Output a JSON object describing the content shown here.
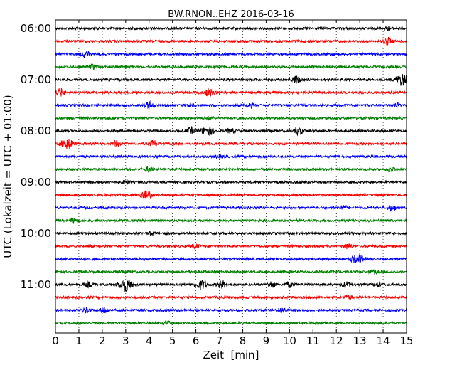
{
  "chart_data": {
    "type": "line",
    "title": "BW.RNON..EHZ 2016-03-16",
    "xlabel": "Zeit  [min]",
    "ylabel": "UTC (Lokalzeit = UTC + 01:00)",
    "xlim": [
      0,
      15
    ],
    "x_ticks": [
      "0",
      "1",
      "2",
      "3",
      "4",
      "5",
      "6",
      "7",
      "8",
      "9",
      "10",
      "11",
      "12",
      "13",
      "14",
      "15"
    ],
    "y_ticks": [
      "06:00",
      "07:00",
      "08:00",
      "09:00",
      "10:00",
      "11:00"
    ],
    "grid": "vertical-dotted",
    "trace_colors": [
      "#000000",
      "#ff0000",
      "#0000ff",
      "#008000"
    ],
    "traces": [
      {
        "start": "06:00",
        "events": [
          [
            14.2,
            2
          ]
        ]
      },
      {
        "start": "06:15",
        "events": [
          [
            14.2,
            5
          ]
        ]
      },
      {
        "start": "06:30",
        "events": [
          [
            1.3,
            4
          ]
        ]
      },
      {
        "start": "06:45",
        "events": [
          [
            1.6,
            3
          ]
        ]
      },
      {
        "start": "07:00",
        "events": [
          [
            10.3,
            5
          ],
          [
            14.8,
            8
          ]
        ]
      },
      {
        "start": "07:15",
        "events": [
          [
            0.2,
            5
          ],
          [
            6.5,
            3
          ],
          [
            6.6,
            3
          ]
        ]
      },
      {
        "start": "07:30",
        "events": [
          [
            4.0,
            5
          ],
          [
            5.8,
            3
          ],
          [
            8.3,
            3
          ],
          [
            14.6,
            3
          ]
        ]
      },
      {
        "start": "07:45",
        "events": [
          [
            6.6,
            2
          ]
        ]
      },
      {
        "start": "08:00",
        "events": [
          [
            5.8,
            4
          ],
          [
            6.5,
            6
          ],
          [
            7.5,
            3
          ],
          [
            10.4,
            5
          ]
        ]
      },
      {
        "start": "08:15",
        "events": [
          [
            0.5,
            7
          ],
          [
            2.6,
            4
          ],
          [
            4.2,
            4
          ]
        ]
      },
      {
        "start": "08:30",
        "events": [
          [
            7.0,
            2
          ]
        ]
      },
      {
        "start": "08:45",
        "events": [
          [
            4.0,
            3
          ],
          [
            14.3,
            3
          ]
        ]
      },
      {
        "start": "09:00",
        "events": [
          [
            3.0,
            2
          ]
        ]
      },
      {
        "start": "09:15",
        "events": [
          [
            3.8,
            4
          ],
          [
            4.0,
            3
          ]
        ]
      },
      {
        "start": "09:30",
        "events": [
          [
            12.3,
            3
          ],
          [
            14.4,
            4
          ]
        ]
      },
      {
        "start": "09:45",
        "events": [
          [
            0.8,
            3
          ]
        ]
      },
      {
        "start": "10:00",
        "events": [
          [
            4.1,
            2
          ]
        ]
      },
      {
        "start": "10:15",
        "events": [
          [
            6.0,
            3
          ],
          [
            12.5,
            3
          ]
        ]
      },
      {
        "start": "10:30",
        "events": [
          [
            12.9,
            6
          ]
        ]
      },
      {
        "start": "10:45",
        "events": [
          [
            13.6,
            2
          ]
        ]
      },
      {
        "start": "11:00",
        "events": [
          [
            1.4,
            3
          ],
          [
            3.0,
            9
          ],
          [
            6.2,
            6
          ],
          [
            7.1,
            5
          ],
          [
            9.2,
            4
          ],
          [
            10.0,
            3
          ],
          [
            12.4,
            4
          ],
          [
            13.8,
            3
          ]
        ]
      },
      {
        "start": "11:15",
        "events": [
          [
            12.5,
            3
          ]
        ]
      },
      {
        "start": "11:30",
        "events": [
          [
            1.3,
            3
          ],
          [
            2.1,
            4
          ],
          [
            9.7,
            3
          ]
        ]
      },
      {
        "start": "11:45",
        "events": [
          [
            4.8,
            2
          ]
        ]
      }
    ]
  }
}
